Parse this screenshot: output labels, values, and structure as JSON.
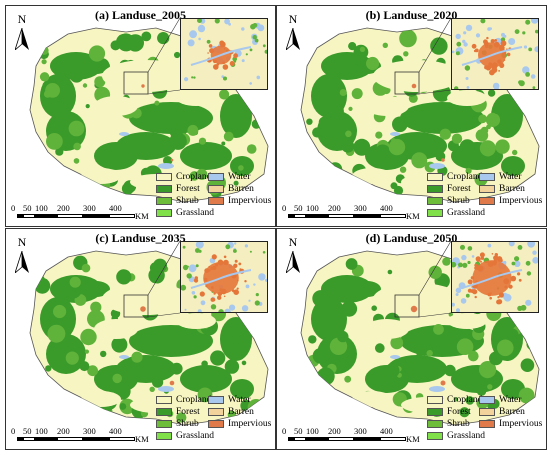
{
  "panels": [
    {
      "title": "(a) Landuse_2005",
      "urban": 0.55
    },
    {
      "title": "(b) Landuse_2020",
      "urban": 0.75
    },
    {
      "title": "(c) Landuse_2035",
      "urban": 0.95
    },
    {
      "title": "(d) Landuse_2050",
      "urban": 1.05
    }
  ],
  "north_label": "N",
  "legend": [
    {
      "label": "Cropland",
      "color": "#f7f5c2"
    },
    {
      "label": "Forest",
      "color": "#3a9a2a"
    },
    {
      "label": "Shrub",
      "color": "#6dbd3a"
    },
    {
      "label": "Grassland",
      "color": "#7fe04a"
    },
    {
      "label": "Water",
      "color": "#a8c8ee"
    },
    {
      "label": "Barren",
      "color": "#f2d39b"
    },
    {
      "label": "Impervious",
      "color": "#e07a4a"
    }
  ],
  "scale": {
    "ticks": [
      "0",
      "50",
      "100",
      "200",
      "300",
      "400"
    ],
    "unit": "KM"
  }
}
